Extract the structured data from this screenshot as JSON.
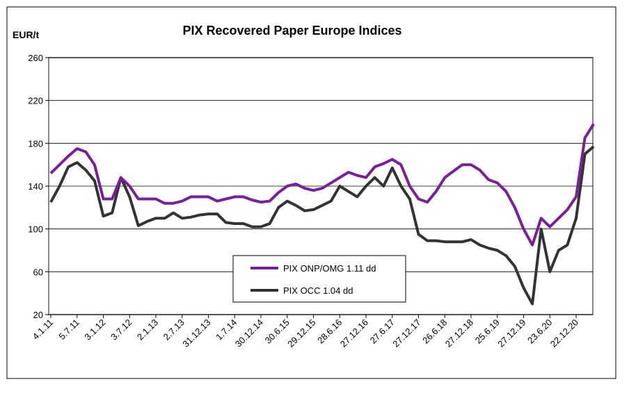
{
  "chart_data": {
    "type": "line",
    "title": "PIX Recovered Paper Europe Indices",
    "y_label": "EUR/t",
    "categories": [
      "4.1.11",
      null,
      null,
      "5.7.11",
      null,
      null,
      "3.1.12",
      null,
      null,
      "3.7.12",
      null,
      null,
      "2.1.13",
      null,
      null,
      "2.7.13",
      null,
      null,
      "31.12.13",
      null,
      null,
      "1.7.14",
      null,
      null,
      "30.12.14",
      null,
      null,
      "30.6.15",
      null,
      null,
      "29.12.15",
      null,
      null,
      "28.6.16",
      null,
      null,
      "27.12.16",
      null,
      null,
      "27.6.17",
      null,
      null,
      "27.12.17",
      null,
      null,
      "26.6.18",
      null,
      null,
      "27.12.18",
      null,
      null,
      "25.6.19",
      null,
      null,
      "27.12.19",
      null,
      null,
      "23.6.20",
      null,
      null,
      "22.12.20",
      null,
      null
    ],
    "series": [
      {
        "name": "PIX ONP/OMG 1.11 dd",
        "color": "#7a1e9c",
        "values": [
          152,
          160,
          168,
          175,
          172,
          160,
          128,
          128,
          148,
          140,
          128,
          128,
          128,
          124,
          124,
          126,
          130,
          130,
          130,
          126,
          128,
          130,
          130,
          127,
          125,
          126,
          134,
          140,
          142,
          138,
          136,
          138,
          143,
          148,
          153,
          150,
          148,
          158,
          161,
          165,
          160,
          140,
          128,
          125,
          135,
          148,
          154,
          160,
          160,
          155,
          146,
          143,
          135,
          120,
          100,
          85,
          110,
          102,
          110,
          118,
          130,
          185,
          198
        ]
      },
      {
        "name": "PIX OCC 1.04 dd",
        "color": "#333333",
        "values": [
          125,
          140,
          158,
          162,
          155,
          145,
          112,
          115,
          148,
          130,
          103,
          107,
          110,
          110,
          115,
          110,
          111,
          113,
          114,
          114,
          106,
          105,
          105,
          102,
          102,
          105,
          120,
          126,
          122,
          117,
          118,
          122,
          126,
          140,
          135,
          130,
          140,
          148,
          140,
          157,
          140,
          128,
          95,
          89,
          89,
          88,
          88,
          88,
          90,
          85,
          82,
          80,
          75,
          65,
          45,
          30,
          100,
          60,
          80,
          85,
          110,
          170,
          177
        ]
      }
    ],
    "ylim": [
      20,
      260
    ],
    "yticks": [
      20,
      60,
      100,
      140,
      180,
      220,
      260
    ],
    "grid": true
  }
}
